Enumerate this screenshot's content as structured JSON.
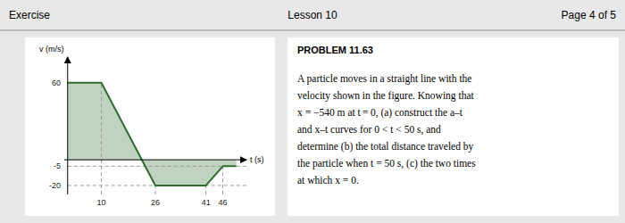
{
  "chart_data": {
    "type": "line",
    "annotations": [
      "Exercise",
      "Lesson 10",
      "Page 4 of 5",
      "PROBLEM 11.63",
      "A particle moves in a straight line with the",
      "velocity shown in the figure. Knowing that",
      "x = −540 m  at t = 0, (a) construct the a–t",
      "and  x–t  curves for  0 < t < 50 s,  and",
      "determine (b) the total distance traveled by",
      "the particle when t = 50 s, (c) the two times",
      "at which x = 0."
    ],
    "y_label": "v (m/s)",
    "x_label": "t (s)",
    "x": [
      0,
      10,
      26,
      41,
      46,
      50
    ],
    "values": [
      60,
      60,
      -20,
      -20,
      -5,
      -5
    ],
    "reference_lines": [
      -5,
      -20
    ],
    "xlim": [
      -1,
      53
    ],
    "ylim": [
      -27,
      80
    ],
    "xticks": [
      10,
      26,
      41,
      46
    ],
    "yticks": [
      60,
      -5,
      -20
    ],
    "color": "#2d6e2d"
  }
}
